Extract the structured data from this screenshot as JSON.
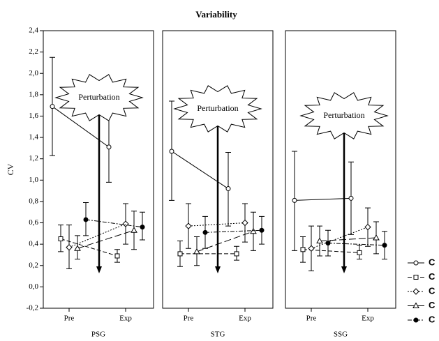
{
  "chart_data": {
    "type": "line",
    "title": "Variability",
    "y_label": "CV",
    "categories": [
      "Pre",
      "Exp"
    ],
    "ylim": [
      -0.2,
      2.4
    ],
    "yticks": [
      {
        "value": 2.4,
        "label": "2,4"
      },
      {
        "value": 2.2,
        "label": "2,2"
      },
      {
        "value": 2.0,
        "label": "2,0"
      },
      {
        "value": 1.8,
        "label": "1,8"
      },
      {
        "value": 1.6,
        "label": "1,6"
      },
      {
        "value": 1.4,
        "label": "1,4"
      },
      {
        "value": 1.2,
        "label": "1,2"
      },
      {
        "value": 1.0,
        "label": "1,0"
      },
      {
        "value": 0.8,
        "label": "0,8"
      },
      {
        "value": 0.6,
        "label": "0,6"
      },
      {
        "value": 0.4,
        "label": "0,4"
      },
      {
        "value": 0.2,
        "label": "0,2"
      },
      {
        "value": 0.0,
        "label": "0,0"
      },
      {
        "value": -0.2,
        "label": "-0,2"
      }
    ],
    "legend": [
      {
        "name": "C",
        "color": "#000000",
        "marker": "circle-open",
        "dash": "none"
      },
      {
        "name": "C",
        "color": "#000000",
        "marker": "square-open",
        "dash": "6,3"
      },
      {
        "name": "C",
        "color": "#000000",
        "marker": "diamond-open",
        "dash": "2,2"
      },
      {
        "name": "C",
        "color": "#000000",
        "marker": "triangle-open",
        "dash": "10,4"
      },
      {
        "name": "C",
        "color": "#000000",
        "marker": "circle-filled",
        "dash": "6,2,2,2"
      }
    ],
    "panels": [
      {
        "label": "PSG",
        "annotation": "Perturbation",
        "series": [
          {
            "values": [
              1.69,
              1.31
            ],
            "lower": [
              1.23,
              0.98
            ],
            "upper": [
              2.15,
              1.62
            ]
          },
          {
            "values": [
              0.45,
              0.29
            ],
            "lower": [
              0.33,
              0.23
            ],
            "upper": [
              0.58,
              0.35
            ]
          },
          {
            "values": [
              0.37,
              0.59
            ],
            "lower": [
              0.17,
              0.4
            ],
            "upper": [
              0.58,
              0.78
            ]
          },
          {
            "values": [
              0.36,
              0.53
            ],
            "lower": [
              0.26,
              0.35
            ],
            "upper": [
              0.48,
              0.71
            ]
          },
          {
            "values": [
              0.63,
              0.56
            ],
            "lower": [
              0.48,
              0.44
            ],
            "upper": [
              0.79,
              0.7
            ]
          }
        ]
      },
      {
        "label": "STG",
        "annotation": "Perturbation",
        "series": [
          {
            "values": [
              1.27,
              0.92
            ],
            "lower": [
              0.81,
              0.57
            ],
            "upper": [
              1.74,
              1.26
            ]
          },
          {
            "values": [
              0.31,
              0.31
            ],
            "lower": [
              0.19,
              0.25
            ],
            "upper": [
              0.43,
              0.38
            ]
          },
          {
            "values": [
              0.57,
              0.6
            ],
            "lower": [
              0.36,
              0.42
            ],
            "upper": [
              0.78,
              0.78
            ]
          },
          {
            "values": [
              0.33,
              0.52
            ],
            "lower": [
              0.2,
              0.34
            ],
            "upper": [
              0.47,
              0.7
            ]
          },
          {
            "values": [
              0.51,
              0.53
            ],
            "lower": [
              0.36,
              0.4
            ],
            "upper": [
              0.66,
              0.66
            ]
          }
        ]
      },
      {
        "label": "SSG",
        "annotation": "Perturbation",
        "series": [
          {
            "values": [
              0.81,
              0.83
            ],
            "lower": [
              0.34,
              0.49
            ],
            "upper": [
              1.27,
              1.17
            ]
          },
          {
            "values": [
              0.35,
              0.32
            ],
            "lower": [
              0.23,
              0.26
            ],
            "upper": [
              0.47,
              0.39
            ]
          },
          {
            "values": [
              0.36,
              0.56
            ],
            "lower": [
              0.15,
              0.38
            ],
            "upper": [
              0.57,
              0.74
            ]
          },
          {
            "values": [
              0.43,
              0.46
            ],
            "lower": [
              0.29,
              0.31
            ],
            "upper": [
              0.57,
              0.61
            ]
          },
          {
            "values": [
              0.41,
              0.39
            ],
            "lower": [
              0.29,
              0.26
            ],
            "upper": [
              0.53,
              0.52
            ]
          }
        ]
      }
    ]
  }
}
